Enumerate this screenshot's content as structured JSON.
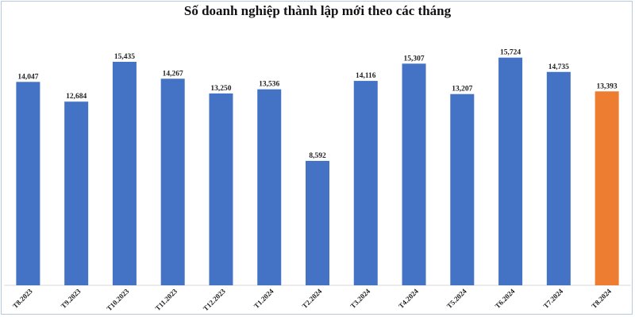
{
  "chart_data": {
    "type": "bar",
    "title": "Số doanh nghiệp thành lập mới theo các tháng",
    "categories": [
      "T8.2023",
      "T9.2023",
      "T10.2023",
      "T11.2023",
      "T12.2023",
      "T1.2024",
      "T2.2024",
      "T3.2024",
      "T4.2024",
      "T5.2024",
      "T6.2024",
      "T7.2024",
      "T8.2024"
    ],
    "values": [
      14047,
      12684,
      15435,
      14267,
      13250,
      13536,
      8592,
      14116,
      15307,
      13207,
      15724,
      14735,
      13393
    ],
    "value_labels": [
      "14,047",
      "12,684",
      "15,435",
      "14,267",
      "13,250",
      "13,536",
      "8,592",
      "14,116",
      "15,307",
      "13,207",
      "15,724",
      "14,735",
      "13,393"
    ],
    "ylim": [
      0,
      16000
    ],
    "grid": false,
    "legend": "none",
    "colors": {
      "default": "#4472c4",
      "highlight": "#ed7d31",
      "highlight_index": 12
    }
  }
}
